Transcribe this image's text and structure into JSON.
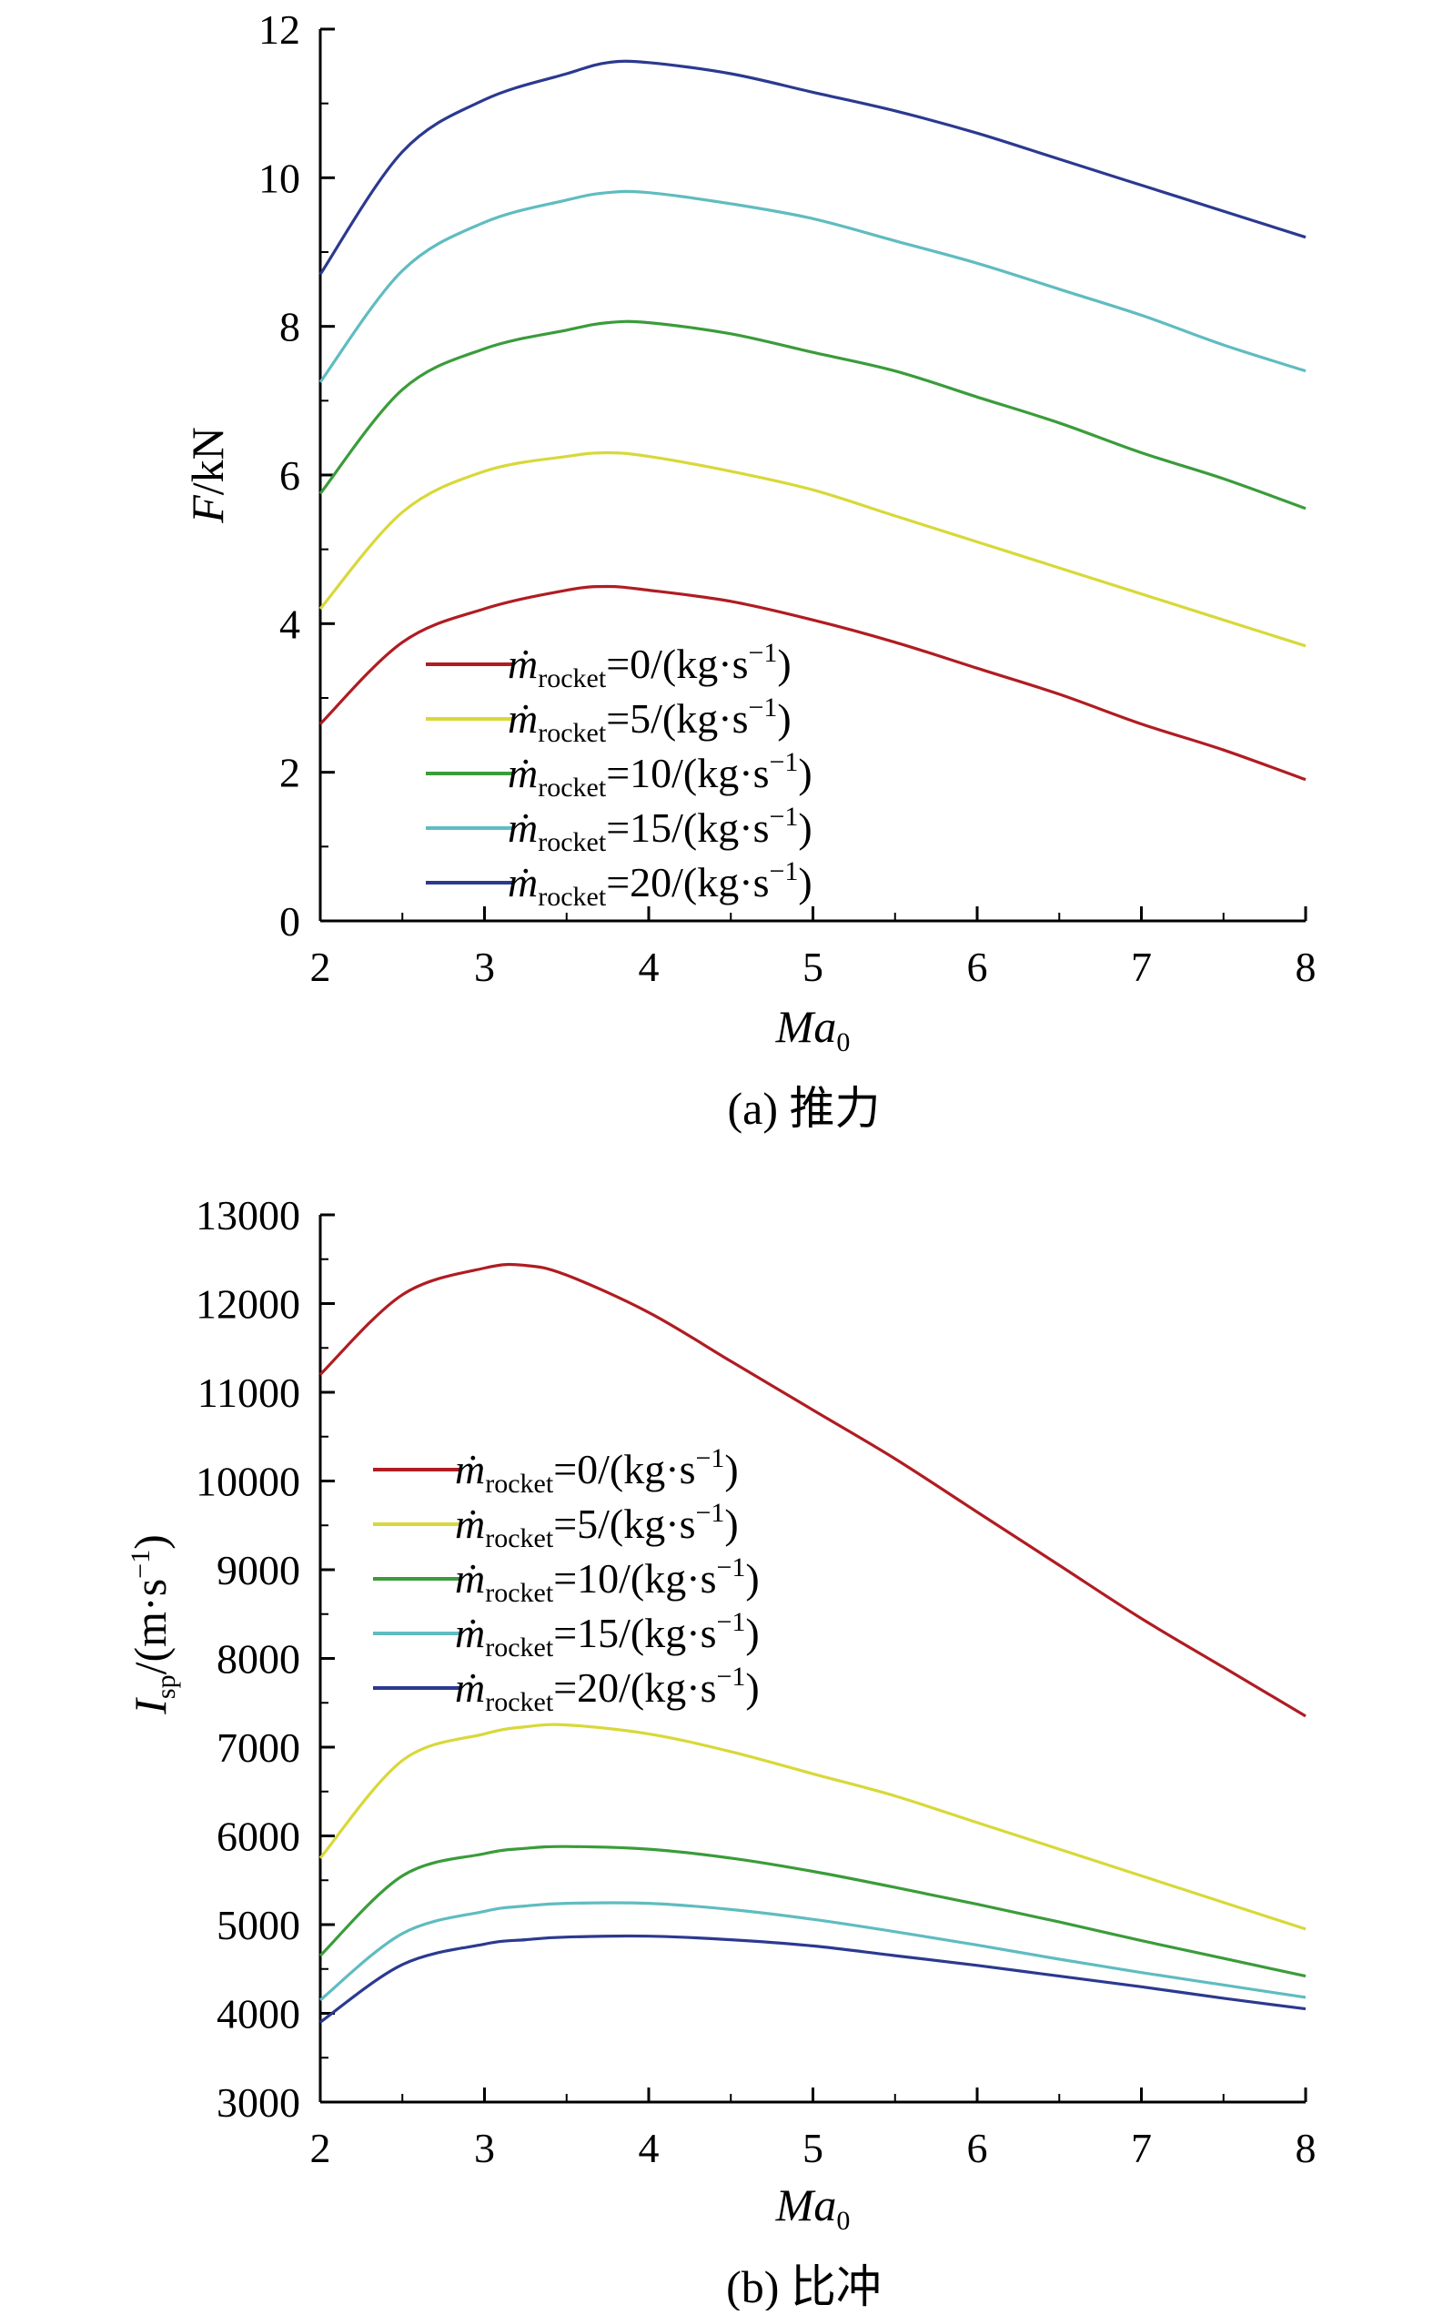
{
  "charts": [
    {
      "id": "a",
      "caption": "(a) 推力",
      "chart_data": {
        "type": "line",
        "title": "",
        "xlabel": "Ma",
        "xlabel_sub": "0",
        "ylabel": "F/kN",
        "ylabel_italic_part": "F",
        "ylabel_rest": "/kN",
        "xlim": [
          2,
          8
        ],
        "ylim": [
          0,
          12
        ],
        "xticks": [
          "2",
          "3",
          "4",
          "5",
          "6",
          "7",
          "8"
        ],
        "yticks": [
          "0",
          "2",
          "4",
          "6",
          "8",
          "10",
          "12"
        ],
        "x": [
          2,
          2.5,
          3,
          3.5,
          3.75,
          4,
          4.5,
          5,
          5.5,
          6,
          6.5,
          7,
          7.5,
          8
        ],
        "series": [
          {
            "name": "ṁrocket=0/(kg·s−1)",
            "color": "#b01c22",
            "values": [
              2.65,
              3.75,
              4.2,
              4.45,
              4.5,
              4.45,
              4.3,
              4.05,
              3.75,
              3.4,
              3.05,
              2.65,
              2.3,
              1.9
            ]
          },
          {
            "name": "ṁrocket=5/(kg·s−1)",
            "color": "#d8d83a",
            "values": [
              4.2,
              5.5,
              6.05,
              6.25,
              6.3,
              6.25,
              6.05,
              5.8,
              5.45,
              5.1,
              4.75,
              4.4,
              4.05,
              3.7
            ]
          },
          {
            "name": "ṁrocket=10/(kg·s−1)",
            "color": "#3a9c3a",
            "values": [
              5.75,
              7.15,
              7.7,
              7.95,
              8.05,
              8.05,
              7.9,
              7.65,
              7.4,
              7.05,
              6.7,
              6.3,
              5.95,
              5.55
            ]
          },
          {
            "name": "ṁrocket=15/(kg·s−1)",
            "color": "#5fbcc0",
            "values": [
              7.25,
              8.75,
              9.4,
              9.7,
              9.8,
              9.8,
              9.65,
              9.45,
              9.15,
              8.85,
              8.5,
              8.15,
              7.75,
              7.4
            ]
          },
          {
            "name": "ṁrocket=20/(kg·s−1)",
            "color": "#2b3990",
            "values": [
              8.7,
              10.35,
              11.05,
              11.4,
              11.55,
              11.55,
              11.4,
              11.15,
              10.9,
              10.6,
              10.25,
              9.9,
              9.55,
              9.2
            ]
          }
        ]
      }
    },
    {
      "id": "b",
      "caption": "(b) 比冲",
      "chart_data": {
        "type": "line",
        "title": "",
        "xlabel": "Ma",
        "xlabel_sub": "0",
        "ylabel": "Isp/(m·s−1)",
        "ylabel_italic_part": "I",
        "ylabel_sub": "sp",
        "ylabel_rest": "/(m·s",
        "ylabel_sup": "−1",
        "ylabel_close": ")",
        "xlim": [
          2,
          8
        ],
        "ylim": [
          3000,
          13000
        ],
        "xticks": [
          "2",
          "3",
          "4",
          "5",
          "6",
          "7",
          "8"
        ],
        "yticks": [
          "3000",
          "4000",
          "5000",
          "6000",
          "7000",
          "8000",
          "9000",
          "10000",
          "11000",
          "12000",
          "13000"
        ],
        "x": [
          2,
          2.5,
          3,
          3.25,
          3.5,
          4,
          4.5,
          5,
          5.5,
          6,
          6.5,
          7,
          7.5,
          8
        ],
        "series": [
          {
            "name": "ṁrocket=0/(kg·s−1)",
            "color": "#b01c22",
            "values": [
              11200,
              12100,
              12400,
              12430,
              12320,
              11900,
              11350,
              10800,
              10250,
              9650,
              9050,
              8450,
              7900,
              7350
            ]
          },
          {
            "name": "ṁrocket=5/(kg·s−1)",
            "color": "#d8d83a",
            "values": [
              5750,
              6850,
              7150,
              7230,
              7250,
              7150,
              6950,
              6700,
              6450,
              6150,
              5850,
              5550,
              5250,
              4950
            ]
          },
          {
            "name": "ṁrocket=10/(kg·s−1)",
            "color": "#3a9c3a",
            "values": [
              4650,
              5550,
              5800,
              5860,
              5880,
              5850,
              5750,
              5600,
              5420,
              5230,
              5030,
              4820,
              4620,
              4420
            ]
          },
          {
            "name": "ṁrocket=15/(kg·s−1)",
            "color": "#5fbcc0",
            "values": [
              4150,
              4900,
              5150,
              5210,
              5240,
              5240,
              5170,
              5060,
              4920,
              4770,
              4610,
              4460,
              4320,
              4180
            ]
          },
          {
            "name": "ṁrocket=20/(kg·s−1)",
            "color": "#2b3990",
            "values": [
              3900,
              4550,
              4780,
              4830,
              4860,
              4870,
              4830,
              4760,
              4650,
              4540,
              4420,
              4300,
              4170,
              4050
            ]
          }
        ]
      }
    }
  ],
  "legend_parts": {
    "m": "ṁ",
    "sub": "rocket",
    "eq": "=",
    "unit_open": "/(kg·s",
    "sup": "−1",
    "unit_close": ")",
    "values": [
      "0",
      "5",
      "10",
      "15",
      "20"
    ]
  }
}
